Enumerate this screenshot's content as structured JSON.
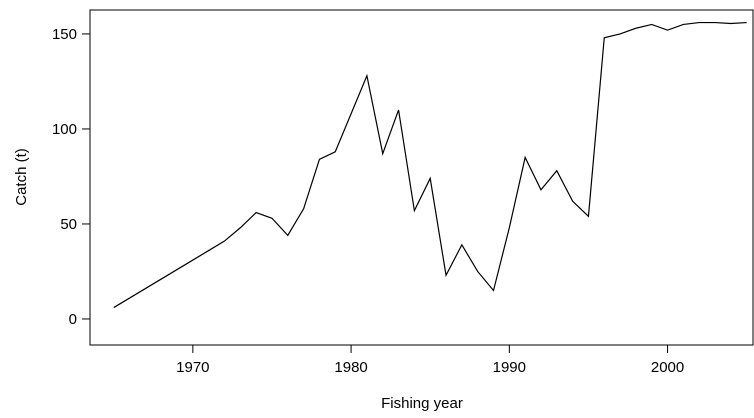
{
  "chart_data": {
    "type": "line",
    "xlabel": "Fishing year",
    "ylabel": "Catch (t)",
    "x": [
      1965,
      1966,
      1967,
      1968,
      1969,
      1970,
      1971,
      1972,
      1973,
      1974,
      1975,
      1976,
      1977,
      1978,
      1979,
      1980,
      1981,
      1982,
      1983,
      1984,
      1985,
      1986,
      1987,
      1988,
      1989,
      1990,
      1991,
      1992,
      1993,
      1994,
      1995,
      1996,
      1997,
      1998,
      1999,
      2000,
      2001,
      2002,
      2003,
      2004,
      2005
    ],
    "series": [
      {
        "color": "#000000",
        "values": [
          6,
          11,
          16,
          21,
          26,
          31,
          36,
          41,
          48,
          56,
          53,
          44,
          58,
          84,
          88,
          108,
          128,
          87,
          110,
          57,
          74,
          23,
          39,
          25,
          15,
          48,
          85,
          68,
          78,
          62,
          54,
          148,
          150,
          153,
          155,
          152,
          155,
          156,
          156,
          155.5,
          156
        ]
      }
    ],
    "xlim": [
      1963.5,
      2005.4
    ],
    "ylim": [
      -13.7,
      162.6
    ],
    "xticks": [
      1970,
      1980,
      1990,
      2000
    ],
    "yticks": [
      0,
      50,
      100,
      150
    ]
  }
}
